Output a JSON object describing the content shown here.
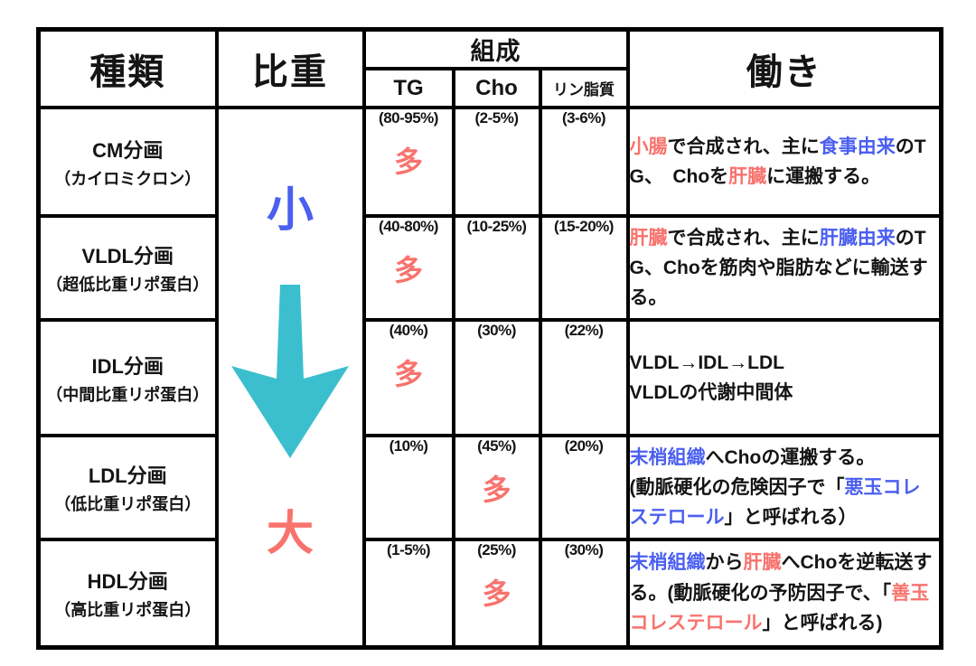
{
  "colors": {
    "black": "#141414",
    "blue": "#4b5ff0",
    "red": "#f8736e",
    "teal": "#3bbfce"
  },
  "header": {
    "type_label": "種類",
    "density_label": "比重",
    "composition_label": "組成",
    "tg_label": "TG",
    "cho_label": "Cho",
    "phospholipid_label": "リン脂質",
    "function_label": "働き"
  },
  "density": {
    "small_label": "小",
    "large_label": "大",
    "arrow_icon": "down-arrow",
    "arrow_color": "#3bbfce"
  },
  "rows": [
    {
      "name": "CM分画",
      "subname": "（カイロミクロン）",
      "tg": {
        "value": "(80-95%)",
        "many": "多"
      },
      "cho": {
        "value": "(2-5%)",
        "many": ""
      },
      "phospholipid": {
        "value": "(3-6%)",
        "many": ""
      },
      "function_segments": [
        {
          "text": "小腸",
          "color": "red"
        },
        {
          "text": "で合成され、主に",
          "color": "black"
        },
        {
          "text": "食事由来",
          "color": "blue"
        },
        {
          "text": "のTG、　Choを",
          "color": "black"
        },
        {
          "text": "肝臓",
          "color": "red"
        },
        {
          "text": "に運搬する。",
          "color": "black"
        }
      ]
    },
    {
      "name": "VLDL分画",
      "subname": "（超低比重リポ蛋白）",
      "tg": {
        "value": "(40-80%)",
        "many": "多"
      },
      "cho": {
        "value": "(10-25%)",
        "many": ""
      },
      "phospholipid": {
        "value": "(15-20%)",
        "many": ""
      },
      "function_segments": [
        {
          "text": "肝臓",
          "color": "red"
        },
        {
          "text": "で合成され、主に",
          "color": "black"
        },
        {
          "text": "肝臓由来",
          "color": "blue"
        },
        {
          "text": "のTG、Choを筋肉や脂肪などに輸送する。",
          "color": "black"
        }
      ]
    },
    {
      "name": "IDL分画",
      "subname": "（中間比重リポ蛋白）",
      "tg": {
        "value": "(40%)",
        "many": "多"
      },
      "cho": {
        "value": "(30%)",
        "many": ""
      },
      "phospholipid": {
        "value": "(22%)",
        "many": ""
      },
      "function_segments": [
        {
          "text": "VLDL→IDL→LDL\nVLDLの代謝中間体",
          "color": "black"
        }
      ]
    },
    {
      "name": "LDL分画",
      "subname": "（低比重リポ蛋白）",
      "tg": {
        "value": "(10%)",
        "many": ""
      },
      "cho": {
        "value": "(45%)",
        "many": "多"
      },
      "phospholipid": {
        "value": "(20%)",
        "many": ""
      },
      "function_segments": [
        {
          "text": "末梢組織",
          "color": "blue"
        },
        {
          "text": "へChoの運搬する。\n(動脈硬化の危険因子で「",
          "color": "black"
        },
        {
          "text": "悪玉コレステロール",
          "color": "blue"
        },
        {
          "text": "」と呼ばれる）",
          "color": "black"
        }
      ]
    },
    {
      "name": "HDL分画",
      "subname": "（高比重リポ蛋白）",
      "tg": {
        "value": "(1-5%)",
        "many": ""
      },
      "cho": {
        "value": "(25%)",
        "many": "多"
      },
      "phospholipid": {
        "value": "(30%)",
        "many": ""
      },
      "function_segments": [
        {
          "text": "末梢組織",
          "color": "blue"
        },
        {
          "text": "から",
          "color": "black"
        },
        {
          "text": "肝臓",
          "color": "red"
        },
        {
          "text": "へChoを逆転送する。(動脈硬化の予防因子で、「",
          "color": "black"
        },
        {
          "text": "善玉コレステロール",
          "color": "red"
        },
        {
          "text": "」と呼ばれる)",
          "color": "black"
        }
      ]
    }
  ]
}
